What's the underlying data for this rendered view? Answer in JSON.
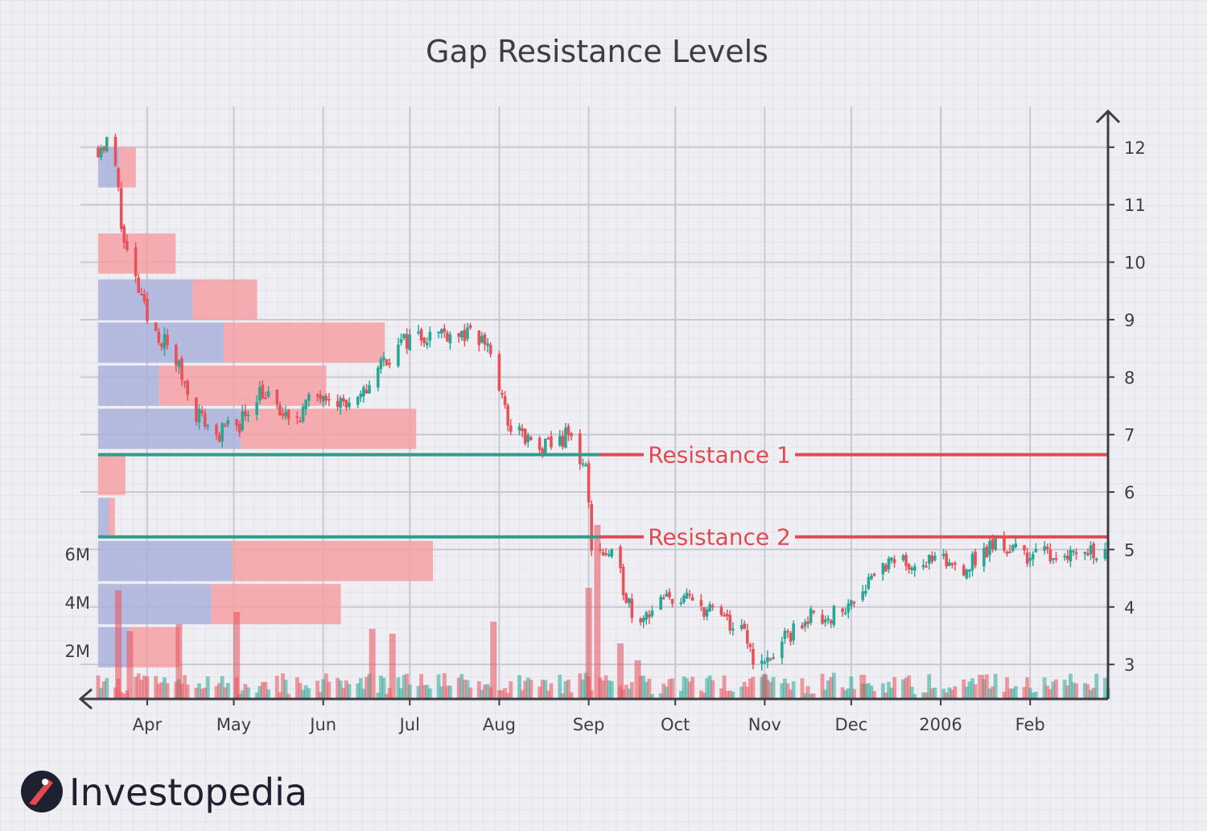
{
  "chart_data": {
    "type": "candlestick",
    "title": "Gap Resistance Levels",
    "x_range": [
      "2005-03-15",
      "2006-02-28"
    ],
    "x_tick_labels": [
      {
        "date": "2005-04-01",
        "label": "Apr"
      },
      {
        "date": "2005-05-01",
        "label": "May"
      },
      {
        "date": "2005-06-01",
        "label": "Jun"
      },
      {
        "date": "2005-07-01",
        "label": "Jul"
      },
      {
        "date": "2005-08-01",
        "label": "Aug"
      },
      {
        "date": "2005-09-01",
        "label": "Sep"
      },
      {
        "date": "2005-10-01",
        "label": "Oct"
      },
      {
        "date": "2005-11-01",
        "label": "Nov"
      },
      {
        "date": "2005-12-01",
        "label": "Dec"
      },
      {
        "date": "2006-01-01",
        "label": "2006"
      },
      {
        "date": "2006-02-01",
        "label": "Feb"
      }
    ],
    "y_range": [
      2.4,
      12.6
    ],
    "y_ticks": [
      3,
      4,
      5,
      6,
      7,
      8,
      9,
      10,
      11,
      12
    ],
    "volume_range": [
      0,
      8000000
    ],
    "volume_tick_labels": [
      {
        "value": 2000000,
        "label": "2M"
      },
      {
        "value": 4000000,
        "label": "4M"
      },
      {
        "value": 6000000,
        "label": "6M"
      }
    ],
    "grid": true,
    "colors": {
      "up": "#2aa795",
      "down": "#e8515a",
      "profile_up": "#aab0db",
      "profile_down": "#f4a0a3",
      "resistance": "#e24a52",
      "support": "#2f9c89"
    },
    "price_path": [
      {
        "date": "2005-03-15",
        "close": 12.0
      },
      {
        "date": "2005-03-20",
        "close": 12.1
      },
      {
        "date": "2005-03-24",
        "close": 10.3
      },
      {
        "date": "2005-04-01",
        "close": 9.0
      },
      {
        "date": "2005-04-10",
        "close": 8.4
      },
      {
        "date": "2005-04-18",
        "close": 7.4
      },
      {
        "date": "2005-04-25",
        "close": 7.0
      },
      {
        "date": "2005-05-03",
        "close": 7.2
      },
      {
        "date": "2005-05-10",
        "close": 7.8
      },
      {
        "date": "2005-05-20",
        "close": 7.2
      },
      {
        "date": "2005-06-01",
        "close": 7.8
      },
      {
        "date": "2005-06-12",
        "close": 7.4
      },
      {
        "date": "2005-06-20",
        "close": 8.2
      },
      {
        "date": "2005-07-01",
        "close": 8.7
      },
      {
        "date": "2005-07-15",
        "close": 8.8
      },
      {
        "date": "2005-07-28",
        "close": 8.6
      },
      {
        "date": "2005-08-04",
        "close": 7.2
      },
      {
        "date": "2005-08-15",
        "close": 6.7
      },
      {
        "date": "2005-08-25",
        "close": 7.0
      },
      {
        "date": "2005-08-31",
        "close": 6.4
      },
      {
        "date": "2005-09-02",
        "close": 5.1
      },
      {
        "date": "2005-09-10",
        "close": 4.8
      },
      {
        "date": "2005-09-17",
        "close": 3.8
      },
      {
        "date": "2005-10-01",
        "close": 4.2
      },
      {
        "date": "2005-10-15",
        "close": 3.9
      },
      {
        "date": "2005-10-25",
        "close": 3.5
      },
      {
        "date": "2005-10-30",
        "close": 2.9
      },
      {
        "date": "2005-11-06",
        "close": 3.3
      },
      {
        "date": "2005-11-15",
        "close": 3.8
      },
      {
        "date": "2005-11-28",
        "close": 3.9
      },
      {
        "date": "2005-12-10",
        "close": 4.7
      },
      {
        "date": "2005-12-25",
        "close": 4.8
      },
      {
        "date": "2006-01-10",
        "close": 4.7
      },
      {
        "date": "2006-01-20",
        "close": 5.1
      },
      {
        "date": "2006-02-01",
        "close": 4.9
      },
      {
        "date": "2006-02-25",
        "close": 5.0
      }
    ],
    "volume_profile": [
      {
        "low": 11.3,
        "high": 12.0,
        "up_volume": 1.0,
        "down_volume": 0.8
      },
      {
        "low": 9.8,
        "high": 10.5,
        "up_volume": 0.0,
        "down_volume": 3.7
      },
      {
        "low": 9.0,
        "high": 9.7,
        "up_volume": 4.5,
        "down_volume": 3.1
      },
      {
        "low": 8.25,
        "high": 8.95,
        "up_volume": 6.0,
        "down_volume": 7.7
      },
      {
        "low": 7.5,
        "high": 8.2,
        "up_volume": 2.9,
        "down_volume": 8.0
      },
      {
        "low": 6.75,
        "high": 7.45,
        "up_volume": 6.8,
        "down_volume": 8.4
      },
      {
        "low": 5.95,
        "high": 6.65,
        "up_volume": 0.0,
        "down_volume": 1.3
      },
      {
        "low": 5.2,
        "high": 5.9,
        "up_volume": 0.5,
        "down_volume": 0.3
      },
      {
        "low": 4.45,
        "high": 5.15,
        "up_volume": 6.4,
        "down_volume": 9.6
      },
      {
        "low": 3.7,
        "high": 4.4,
        "up_volume": 5.4,
        "down_volume": 6.2
      },
      {
        "low": 2.95,
        "high": 3.65,
        "up_volume": 1.5,
        "down_volume": 2.4
      }
    ],
    "volume_spikes": [
      {
        "date": "2005-03-22",
        "volume": 4500000
      },
      {
        "date": "2005-03-26",
        "volume": 2800000
      },
      {
        "date": "2005-04-12",
        "volume": 3100000
      },
      {
        "date": "2005-05-02",
        "volume": 3600000
      },
      {
        "date": "2005-06-18",
        "volume": 2900000
      },
      {
        "date": "2005-06-25",
        "volume": 2700000
      },
      {
        "date": "2005-07-30",
        "volume": 3200000
      },
      {
        "date": "2005-09-01",
        "volume": 4600000
      },
      {
        "date": "2005-09-04",
        "volume": 7200000
      },
      {
        "date": "2005-09-12",
        "volume": 2300000
      },
      {
        "date": "2005-09-18",
        "volume": 1600000
      },
      {
        "date": "2005-11-01",
        "volume": 1000000
      },
      {
        "date": "2005-12-05",
        "volume": 1000000
      },
      {
        "date": "2006-01-15",
        "volume": 1000000
      }
    ],
    "resistance_lines": [
      {
        "label": "Resistance 1",
        "value": 6.65,
        "start": "2005-03-15"
      },
      {
        "label": "Resistance 2",
        "value": 5.22,
        "start": "2005-03-15"
      }
    ]
  },
  "brand": {
    "name": "Investopedia"
  }
}
